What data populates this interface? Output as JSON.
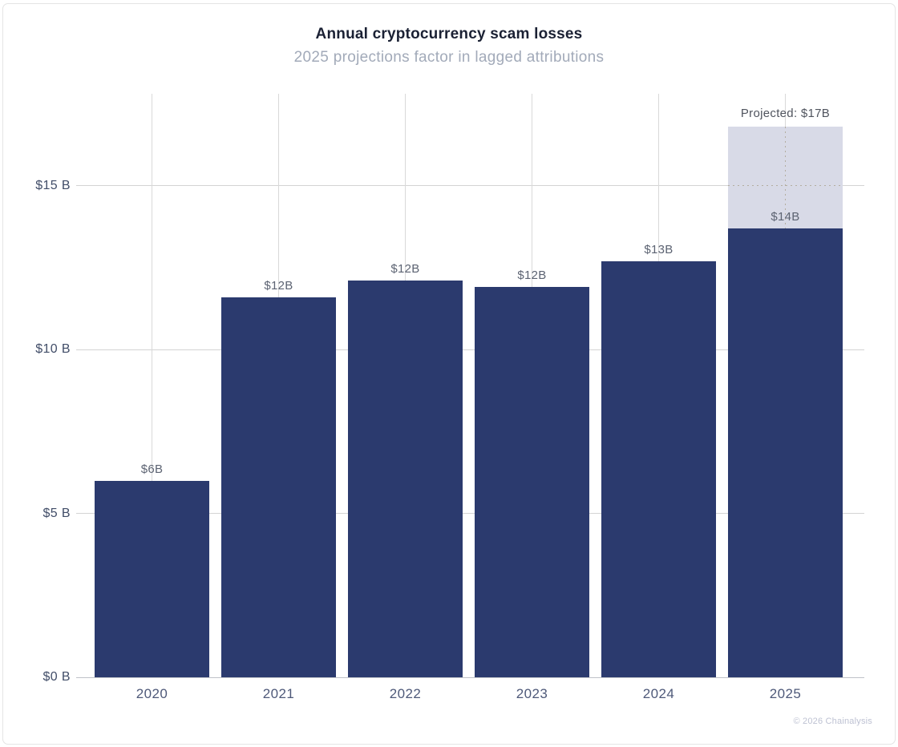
{
  "chart_data": {
    "type": "bar",
    "title": "Annual cryptocurrency scam losses",
    "subtitle": "2025 projections factor in lagged attributions",
    "categories": [
      "2020",
      "2021",
      "2022",
      "2023",
      "2024",
      "2025"
    ],
    "series": [
      {
        "name": "actual",
        "color": "#2b3a6e",
        "values": [
          6.0,
          11.6,
          12.1,
          11.9,
          12.7,
          13.7
        ]
      },
      {
        "name": "projected",
        "color": "#d8dae7",
        "values": [
          0,
          0,
          0,
          0,
          0,
          3.1
        ]
      }
    ],
    "bar_labels": [
      "$6B",
      "$12B",
      "$12B",
      "$12B",
      "$13B",
      "$14B"
    ],
    "annotation": {
      "text": "Projected: $17B",
      "category": "2025",
      "total_value": 16.8
    },
    "y_ticks": [
      {
        "value": 0,
        "label": "$0 B"
      },
      {
        "value": 5,
        "label": "$5 B"
      },
      {
        "value": 10,
        "label": "$10 B"
      },
      {
        "value": 15,
        "label": "$15 B"
      }
    ],
    "ylim": [
      0,
      17.8
    ],
    "xlabel": "",
    "ylabel": "",
    "grid": true,
    "legend": "none",
    "footer": "© 2026 Chainalysis",
    "colors": {
      "actual_bar": "#2b3a6e",
      "projected_bar": "#d8dae7",
      "gridline": "#d9d9d9",
      "projection_dotted_line": "#b3ada0",
      "title_text": "#1b2134",
      "subtitle_text": "#a2aab9",
      "axis_text": "#414d68"
    }
  }
}
